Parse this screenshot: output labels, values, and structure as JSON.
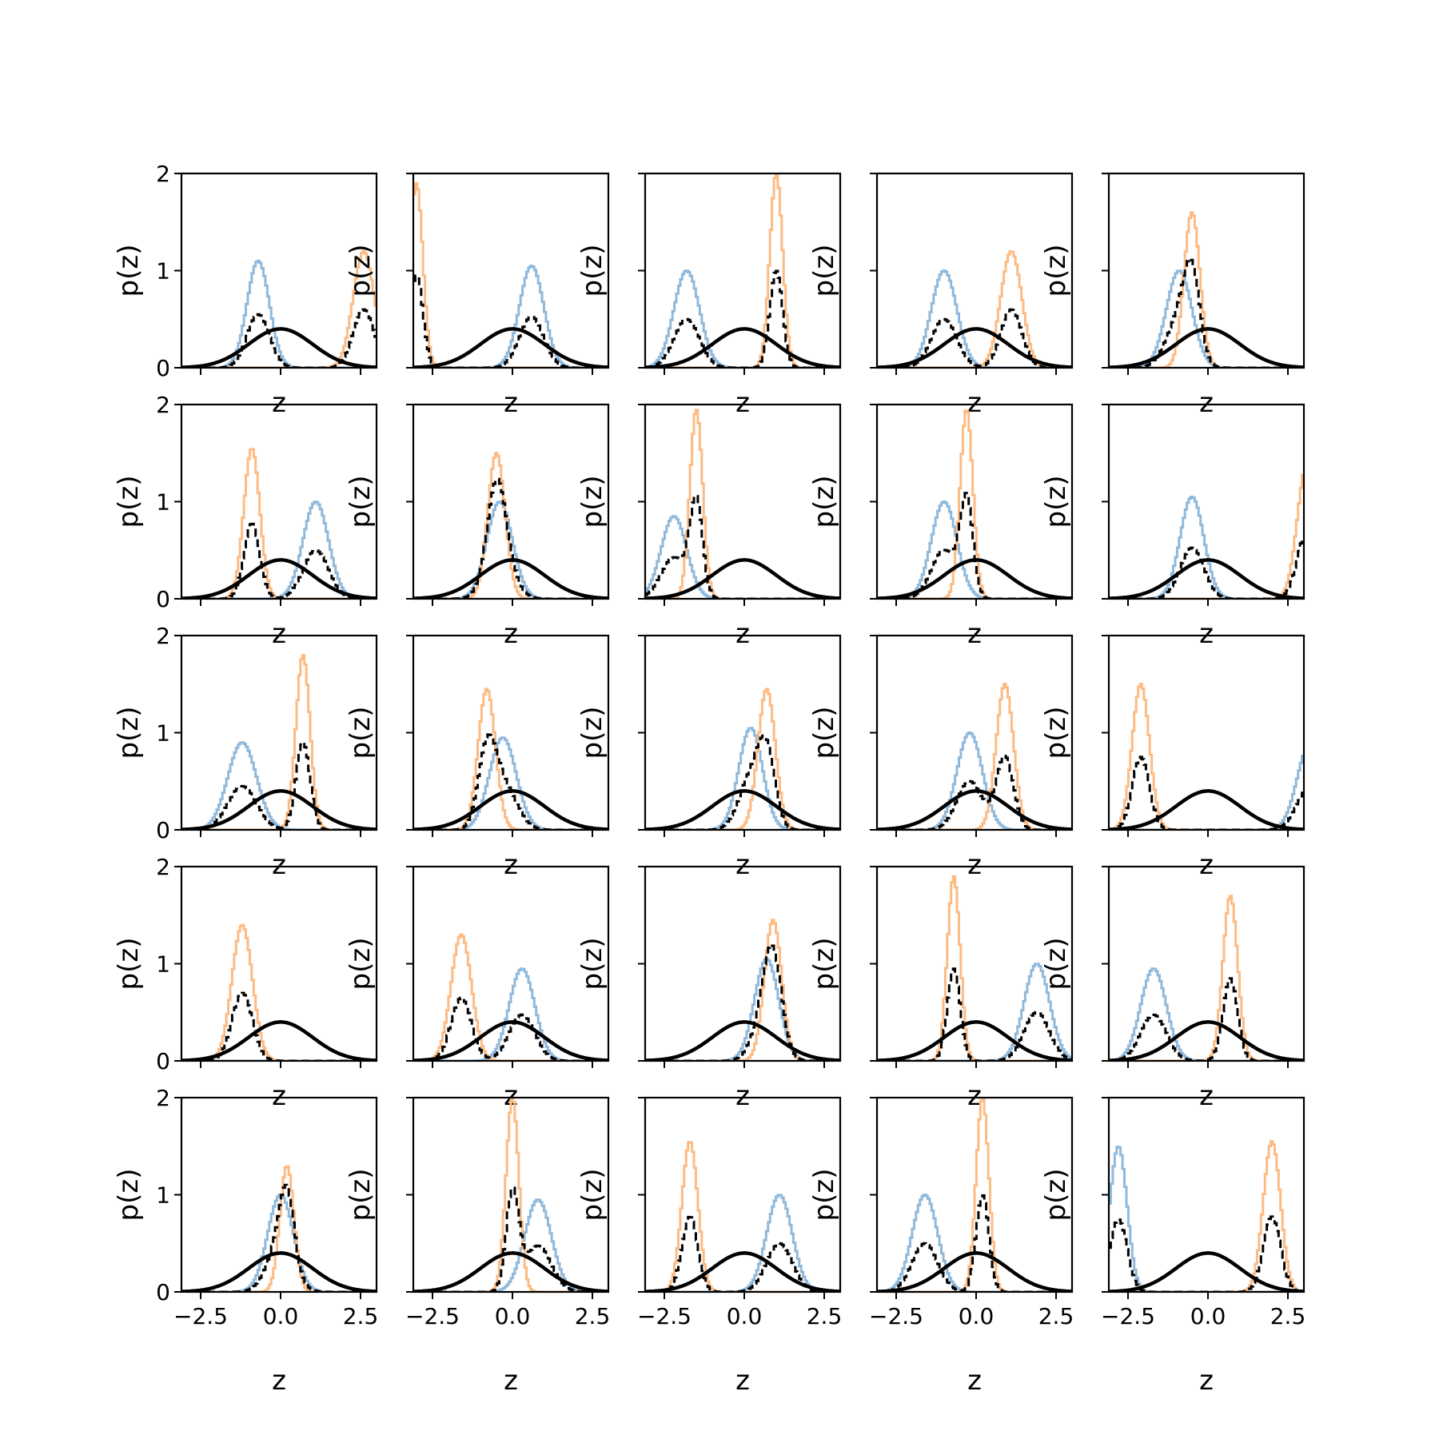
{
  "chart_data": {
    "type": "histogram-grid",
    "rows": 5,
    "cols": 5,
    "xlabel": "z",
    "ylabel": "p(z)",
    "xlim": [
      -3.1,
      3.0
    ],
    "ylim": [
      0,
      2
    ],
    "xticks": [
      -2.5,
      0.0,
      2.5
    ],
    "xtick_labels": [
      "−2.5",
      "0.0",
      "2.5"
    ],
    "yticks": [
      0,
      1,
      2
    ],
    "ytick_labels": [
      "0",
      "1",
      "2"
    ],
    "prior": {
      "type": "normal",
      "mean": 0,
      "std": 1,
      "peak": 0.4
    },
    "colors": {
      "blue": "#8fb9dc",
      "orange": "#fdbb84",
      "mixture": "#000000",
      "prior": "#000000"
    },
    "panels": [
      {
        "blue": [
          -0.7,
          0.35,
          1.1
        ],
        "orange": [
          2.6,
          0.33,
          1.2
        ]
      },
      {
        "blue": [
          0.6,
          0.38,
          1.05
        ],
        "orange": [
          -3.0,
          0.2,
          1.9
        ]
      },
      {
        "blue": [
          -1.8,
          0.4,
          1.0
        ],
        "orange": [
          1.0,
          0.2,
          2.0
        ]
      },
      {
        "blue": [
          -1.0,
          0.4,
          1.0
        ],
        "orange": [
          1.1,
          0.33,
          1.2
        ]
      },
      {
        "blue": [
          -0.9,
          0.4,
          1.0
        ],
        "orange": [
          -0.5,
          0.25,
          1.6
        ]
      },
      {
        "blue": [
          1.1,
          0.4,
          1.0
        ],
        "orange": [
          -0.9,
          0.25,
          1.55
        ]
      },
      {
        "blue": [
          -0.4,
          0.4,
          1.0
        ],
        "orange": [
          -0.5,
          0.27,
          1.5
        ]
      },
      {
        "blue": [
          -2.2,
          0.4,
          0.85
        ],
        "orange": [
          -1.5,
          0.2,
          1.95
        ]
      },
      {
        "blue": [
          -1.0,
          0.4,
          1.0
        ],
        "orange": [
          -0.3,
          0.2,
          1.95
        ]
      },
      {
        "blue": [
          -0.5,
          0.37,
          1.05
        ],
        "orange": [
          3.1,
          0.3,
          1.4
        ]
      },
      {
        "blue": [
          -1.2,
          0.45,
          0.9
        ],
        "orange": [
          0.7,
          0.22,
          1.8
        ]
      },
      {
        "blue": [
          -0.3,
          0.42,
          0.95
        ],
        "orange": [
          -0.8,
          0.27,
          1.45
        ]
      },
      {
        "blue": [
          0.2,
          0.37,
          1.05
        ],
        "orange": [
          0.7,
          0.27,
          1.45
        ]
      },
      {
        "blue": [
          -0.2,
          0.4,
          1.0
        ],
        "orange": [
          0.9,
          0.27,
          1.5
        ]
      },
      {
        "blue": [
          3.2,
          0.4,
          0.9
        ],
        "orange": [
          -2.1,
          0.27,
          1.5
        ]
      },
      {
        "blue": [
          -2.5,
          0.3,
          0.0
        ],
        "orange": [
          -1.2,
          0.32,
          1.4
        ]
      },
      {
        "blue": [
          0.3,
          0.4,
          0.95
        ],
        "orange": [
          -1.6,
          0.32,
          1.3
        ]
      },
      {
        "blue": [
          0.7,
          0.38,
          1.05
        ],
        "orange": [
          0.9,
          0.27,
          1.45
        ]
      },
      {
        "blue": [
          1.9,
          0.4,
          1.0
        ],
        "orange": [
          -0.7,
          0.2,
          1.9
        ]
      },
      {
        "blue": [
          -1.7,
          0.4,
          0.95
        ],
        "orange": [
          0.7,
          0.23,
          1.7
        ]
      },
      {
        "blue": [
          0.0,
          0.4,
          1.0
        ],
        "orange": [
          0.2,
          0.22,
          1.3
        ]
      },
      {
        "blue": [
          0.8,
          0.42,
          0.95
        ],
        "orange": [
          0.0,
          0.2,
          2.0
        ]
      },
      {
        "blue": [
          1.1,
          0.4,
          1.0
        ],
        "orange": [
          -1.7,
          0.25,
          1.55
        ]
      },
      {
        "blue": [
          -1.6,
          0.4,
          1.0
        ],
        "orange": [
          0.2,
          0.2,
          2.0
        ]
      },
      {
        "blue": [
          -2.8,
          0.27,
          1.5
        ],
        "orange": [
          2.0,
          0.27,
          1.55
        ]
      }
    ]
  }
}
